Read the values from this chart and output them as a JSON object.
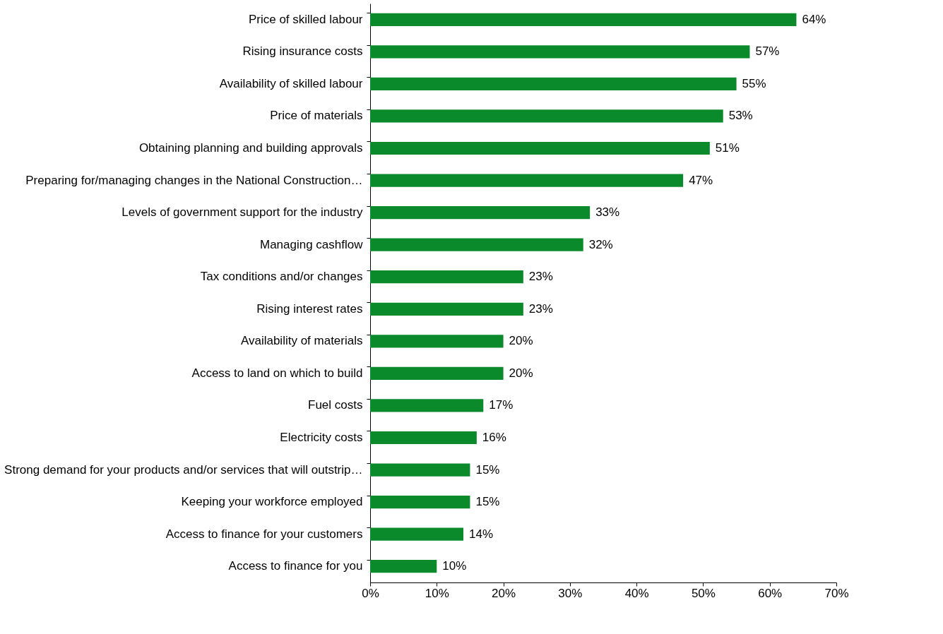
{
  "chart_data": {
    "type": "bar",
    "orientation": "horizontal",
    "categories": [
      "Price of skilled labour",
      "Rising insurance costs",
      "Availability of skilled labour",
      "Price of materials",
      "Obtaining planning and building approvals",
      "Preparing for/managing changes in the National Construction…",
      "Levels of government support for the industry",
      "Managing cashflow",
      "Tax conditions and/or changes",
      "Rising interest rates",
      "Availability of materials",
      "Access to land on which to build",
      "Fuel costs",
      "Electricity costs",
      "Strong demand for your products and/or services that will outstrip…",
      "Keeping your workforce employed",
      "Access to finance for your customers",
      "Access to finance for you"
    ],
    "values": [
      64,
      57,
      55,
      53,
      51,
      47,
      33,
      32,
      23,
      23,
      20,
      20,
      17,
      16,
      15,
      15,
      14,
      10
    ],
    "value_labels": [
      "64%",
      "57%",
      "55%",
      "53%",
      "51%",
      "47%",
      "33%",
      "32%",
      "23%",
      "23%",
      "20%",
      "20%",
      "17%",
      "16%",
      "15%",
      "15%",
      "14%",
      "10%"
    ],
    "color": "#0a8a2a",
    "xlim": [
      0,
      70
    ],
    "xticks": [
      {
        "value": 0,
        "label": "0%"
      },
      {
        "value": 10,
        "label": "10%"
      },
      {
        "value": 20,
        "label": "20%"
      },
      {
        "value": 30,
        "label": "30%"
      },
      {
        "value": 40,
        "label": "40%"
      },
      {
        "value": 50,
        "label": "50%"
      },
      {
        "value": 60,
        "label": "60%"
      },
      {
        "value": 70,
        "label": "70%"
      }
    ],
    "grid": false
  }
}
